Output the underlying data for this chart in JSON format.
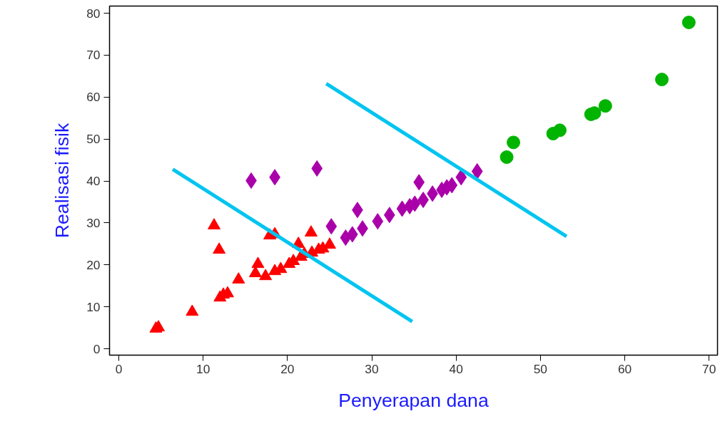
{
  "chart_data": {
    "type": "scatter",
    "xlabel": "Penyerapan dana",
    "ylabel": "Realisasi fisik",
    "xlim": [
      -1.1,
      71.0
    ],
    "ylim": [
      -1.5,
      81.7
    ],
    "xticks": [
      0,
      10,
      20,
      30,
      40,
      50,
      60,
      70
    ],
    "yticks": [
      0,
      10,
      20,
      30,
      40,
      50,
      60,
      70,
      80
    ],
    "grid": false,
    "series": [
      {
        "color": "#ff0000",
        "marker": "triangle",
        "x": [
          4.4,
          4.7,
          8.7,
          11.3,
          11.9,
          12.0,
          12.4,
          12.9,
          14.2,
          16.2,
          16.5,
          17.4,
          17.9,
          18.5,
          18.5,
          19.2,
          20.2,
          20.7,
          21.3,
          21.6,
          22.0,
          22.8,
          22.9,
          23.7,
          24.2,
          25.0
        ],
        "values": [
          4.8,
          5.1,
          8.8,
          29.4,
          23.6,
          12.2,
          12.9,
          13.2,
          16.5,
          18.0,
          20.2,
          17.3,
          27.0,
          27.3,
          18.5,
          19.0,
          20.2,
          20.9,
          25.0,
          21.9,
          22.6,
          27.7,
          22.9,
          23.6,
          23.9,
          24.8
        ]
      },
      {
        "color": "#aa00aa",
        "marker": "diamond",
        "x": [
          15.7,
          18.5,
          23.5,
          25.2,
          26.9,
          27.7,
          28.3,
          28.9,
          30.7,
          32.1,
          33.6,
          34.5,
          35.1,
          35.6,
          36.1,
          37.2,
          38.3,
          38.9,
          39.5,
          40.6,
          42.5
        ],
        "values": [
          40.1,
          40.9,
          43.0,
          29.2,
          26.5,
          27.3,
          33.1,
          28.7,
          30.4,
          31.9,
          33.4,
          34.0,
          34.6,
          39.7,
          35.5,
          37.0,
          37.9,
          38.5,
          39.0,
          40.9,
          42.3
        ]
      },
      {
        "color": "#00b400",
        "marker": "circle",
        "x": [
          46.0,
          46.8,
          51.5,
          52.3,
          56.0,
          56.4,
          57.7,
          64.4,
          67.6
        ],
        "values": [
          45.7,
          49.2,
          51.3,
          52.1,
          55.9,
          56.2,
          57.9,
          64.2,
          77.8
        ]
      },
      {
        "type": "line",
        "color": "#00c4f0",
        "marker": "none",
        "x": [
          6.4,
          34.8
        ],
        "values": [
          42.8,
          6.5
        ]
      },
      {
        "type": "line",
        "color": "#00c4f0",
        "marker": "none",
        "x": [
          24.6,
          53.1
        ],
        "values": [
          63.2,
          26.8
        ]
      }
    ]
  }
}
